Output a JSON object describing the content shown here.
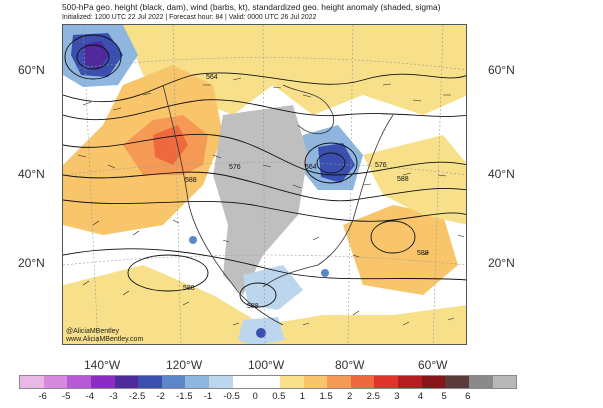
{
  "header": {
    "title": "500-hPa geo. height (black, dam), wind (barbs, kt), standardized geo. height anomaly (shaded, sigma)",
    "subtitle": "Initialized: 1200 UTC 22 Jul 2022 | Forecast hour: 84 | Valid: 0000 UTC 26 Jul 2022"
  },
  "axes": {
    "lat_left": [
      "60°N",
      "40°N",
      "20°N"
    ],
    "lat_right": [
      "60°N",
      "40°N",
      "20°N"
    ],
    "lon": [
      "140°W",
      "120°W",
      "100°W",
      "80°W",
      "60°W"
    ]
  },
  "contour_labels": [
    "564",
    "576",
    "588",
    "564",
    "576",
    "588",
    "588",
    "588",
    "588"
  ],
  "credit": [
    "@AliciaMBentley",
    "www.AliciaMBentley.com"
  ],
  "colorbar": {
    "colors": [
      "#e9b8e6",
      "#d58ae0",
      "#b65ad6",
      "#8a2cc4",
      "#4f2a9c",
      "#3a4fb0",
      "#5b86c8",
      "#8eb6de",
      "#bcd6ee",
      "#ffffff",
      "#ffffff",
      "#f8e08a",
      "#f8c56a",
      "#f59a55",
      "#ee6a3e",
      "#e0332a",
      "#b51e20",
      "#861617",
      "#5a3a3a",
      "#8a8a8a",
      "#b8b8b8"
    ],
    "ticks": [
      "-6",
      "-5",
      "-4",
      "-3",
      "-2.5",
      "-2",
      "-1.5",
      "-1",
      "-0.5",
      "0",
      "0.5",
      "1",
      "1.5",
      "2",
      "2.5",
      "3",
      "4",
      "5",
      "6"
    ]
  }
}
